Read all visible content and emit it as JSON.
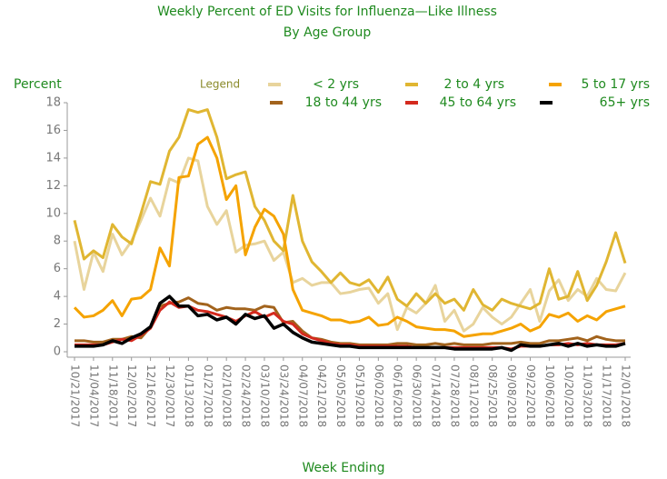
{
  "chart_data": {
    "type": "line",
    "title": "Weekly Percent of ED Visits for Influenza—Like Illness",
    "subtitle": "By Age Group",
    "y_label": "Percent",
    "x_label": "Week Ending",
    "legend_title": "Legend",
    "legend": "top",
    "categories": [
      "10/21/2017",
      null,
      "11/04/2017",
      null,
      "11/18/2017",
      null,
      "12/02/2017",
      null,
      "12/16/2017",
      null,
      "12/30/2017",
      null,
      "01/13/2018",
      null,
      "01/27/2018",
      null,
      "02/10/2018",
      null,
      "02/24/2018",
      null,
      "03/10/2018",
      null,
      "03/24/2018",
      null,
      "04/07/2018",
      null,
      "04/21/2018",
      null,
      "05/05/2018",
      null,
      "05/19/2018",
      null,
      "06/02/2018",
      null,
      "06/16/2018",
      null,
      "06/30/2018",
      null,
      "07/14/2018",
      null,
      "07/28/2018",
      null,
      "08/11/2018",
      null,
      "08/25/2018",
      null,
      "09/08/2018",
      null,
      "09/22/2018",
      null,
      "10/06/2018",
      null,
      "10/20/2018",
      null,
      "11/03/2018",
      null,
      "11/17/2018",
      null,
      "12/01/2018"
    ],
    "ylim": [
      0,
      18
    ],
    "yticks": [
      0,
      2,
      4,
      6,
      8,
      10,
      12,
      14,
      16,
      18
    ],
    "series": [
      {
        "name": "< 2 yrs",
        "color": "#e8d49c",
        "values": [
          8,
          4.5,
          7.2,
          5.8,
          8.5,
          7,
          8,
          9.5,
          11.1,
          9.8,
          12.5,
          12.2,
          14,
          13.8,
          10.5,
          9.2,
          10.2,
          7.2,
          7.7,
          7.8,
          8,
          6.6,
          7.2,
          5,
          5.3,
          4.8,
          5,
          5,
          4.2,
          4.3,
          4.5,
          4.6,
          3.5,
          4.2,
          1.6,
          3.2,
          2.8,
          3.5,
          4.8,
          2.2,
          3,
          1.5,
          2,
          3.2,
          2.5,
          2,
          2.5,
          3.5,
          4.5,
          2.2,
          4.4,
          5.2,
          3.7,
          4.5,
          4,
          5.3,
          4.5,
          4.4,
          5.7
        ]
      },
      {
        "name": "2 to 4 yrs",
        "color": "#e0b632",
        "values": [
          9.5,
          6.7,
          7.3,
          6.8,
          9.2,
          8.3,
          7.8,
          10,
          12.3,
          12.1,
          14.5,
          15.5,
          17.5,
          17.3,
          17.5,
          15.5,
          12.5,
          12.8,
          13,
          10.5,
          9.5,
          8,
          7.3,
          11.3,
          8,
          6.5,
          5.8,
          5,
          5.7,
          5,
          4.8,
          5.2,
          4.3,
          5.4,
          3.8,
          3.3,
          4.2,
          3.5,
          4.2,
          3.5,
          3.8,
          3,
          4.5,
          3.4,
          3,
          3.8,
          3.5,
          3.3,
          3.1,
          3.5,
          6,
          3.8,
          4,
          5.8,
          3.7,
          4.8,
          6.5,
          8.6,
          6.4
        ]
      },
      {
        "name": "5 to 17 yrs",
        "color": "#f5a300",
        "values": [
          3.2,
          2.5,
          2.6,
          3,
          3.7,
          2.6,
          3.8,
          3.9,
          4.5,
          7.5,
          6.2,
          12.6,
          12.7,
          15,
          15.5,
          14,
          11,
          12,
          7,
          9,
          10.3,
          9.8,
          8.5,
          4.5,
          3,
          2.8,
          2.6,
          2.3,
          2.3,
          2.1,
          2.2,
          2.5,
          1.9,
          2,
          2.5,
          2.2,
          1.8,
          1.7,
          1.6,
          1.6,
          1.5,
          1.1,
          1.2,
          1.3,
          1.3,
          1.5,
          1.7,
          2,
          1.5,
          1.8,
          2.7,
          2.5,
          2.8,
          2.2,
          2.6,
          2.3,
          2.9,
          3.1,
          3.3
        ]
      },
      {
        "name": "18 to 44 yrs",
        "color": "#a2631c",
        "values": [
          0.8,
          0.8,
          0.7,
          0.7,
          0.9,
          0.9,
          1.1,
          1,
          1.8,
          3.3,
          3.5,
          3.6,
          3.9,
          3.5,
          3.4,
          3,
          3.2,
          3.1,
          3.1,
          3,
          3.3,
          3.2,
          2.1,
          2.2,
          1.5,
          1,
          0.9,
          0.7,
          0.6,
          0.6,
          0.5,
          0.5,
          0.5,
          0.5,
          0.6,
          0.6,
          0.5,
          0.5,
          0.6,
          0.5,
          0.6,
          0.5,
          0.5,
          0.5,
          0.6,
          0.6,
          0.6,
          0.7,
          0.6,
          0.6,
          0.8,
          0.8,
          0.9,
          1,
          0.8,
          1.1,
          0.9,
          0.8,
          0.8
        ]
      },
      {
        "name": "45 to 64 yrs",
        "color": "#d42a1e",
        "values": [
          0.5,
          0.5,
          0.5,
          0.5,
          0.7,
          0.9,
          0.8,
          1.2,
          1.7,
          3,
          3.6,
          3.2,
          3.3,
          3,
          2.9,
          2.7,
          2.5,
          2.2,
          2.6,
          2.9,
          2.5,
          2.8,
          2.2,
          2,
          1.3,
          1,
          0.8,
          0.6,
          0.5,
          0.5,
          0.4,
          0.4,
          0.4,
          0.4,
          0.4,
          0.4,
          0.3,
          0.3,
          0.3,
          0.3,
          0.3,
          0.3,
          0.3,
          0.3,
          0.3,
          0.3,
          0.2,
          0.4,
          0.4,
          0.4,
          0.5,
          0.5,
          0.6,
          0.5,
          0.6,
          0.5,
          0.5,
          0.5,
          0.6
        ]
      },
      {
        "name": "65+ yrs",
        "color": "#000000",
        "values": [
          0.4,
          0.4,
          0.4,
          0.5,
          0.8,
          0.6,
          1,
          1.3,
          1.8,
          3.5,
          4,
          3.3,
          3.3,
          2.6,
          2.7,
          2.3,
          2.5,
          2,
          2.7,
          2.4,
          2.6,
          1.7,
          2,
          1.4,
          1,
          0.7,
          0.6,
          0.5,
          0.4,
          0.4,
          0.3,
          0.3,
          0.3,
          0.3,
          0.3,
          0.3,
          0.3,
          0.3,
          0.3,
          0.3,
          0.2,
          0.2,
          0.2,
          0.2,
          0.2,
          0.3,
          0.1,
          0.5,
          0.4,
          0.4,
          0.5,
          0.6,
          0.4,
          0.6,
          0.4,
          0.5,
          0.4,
          0.4,
          0.6
        ]
      }
    ]
  }
}
